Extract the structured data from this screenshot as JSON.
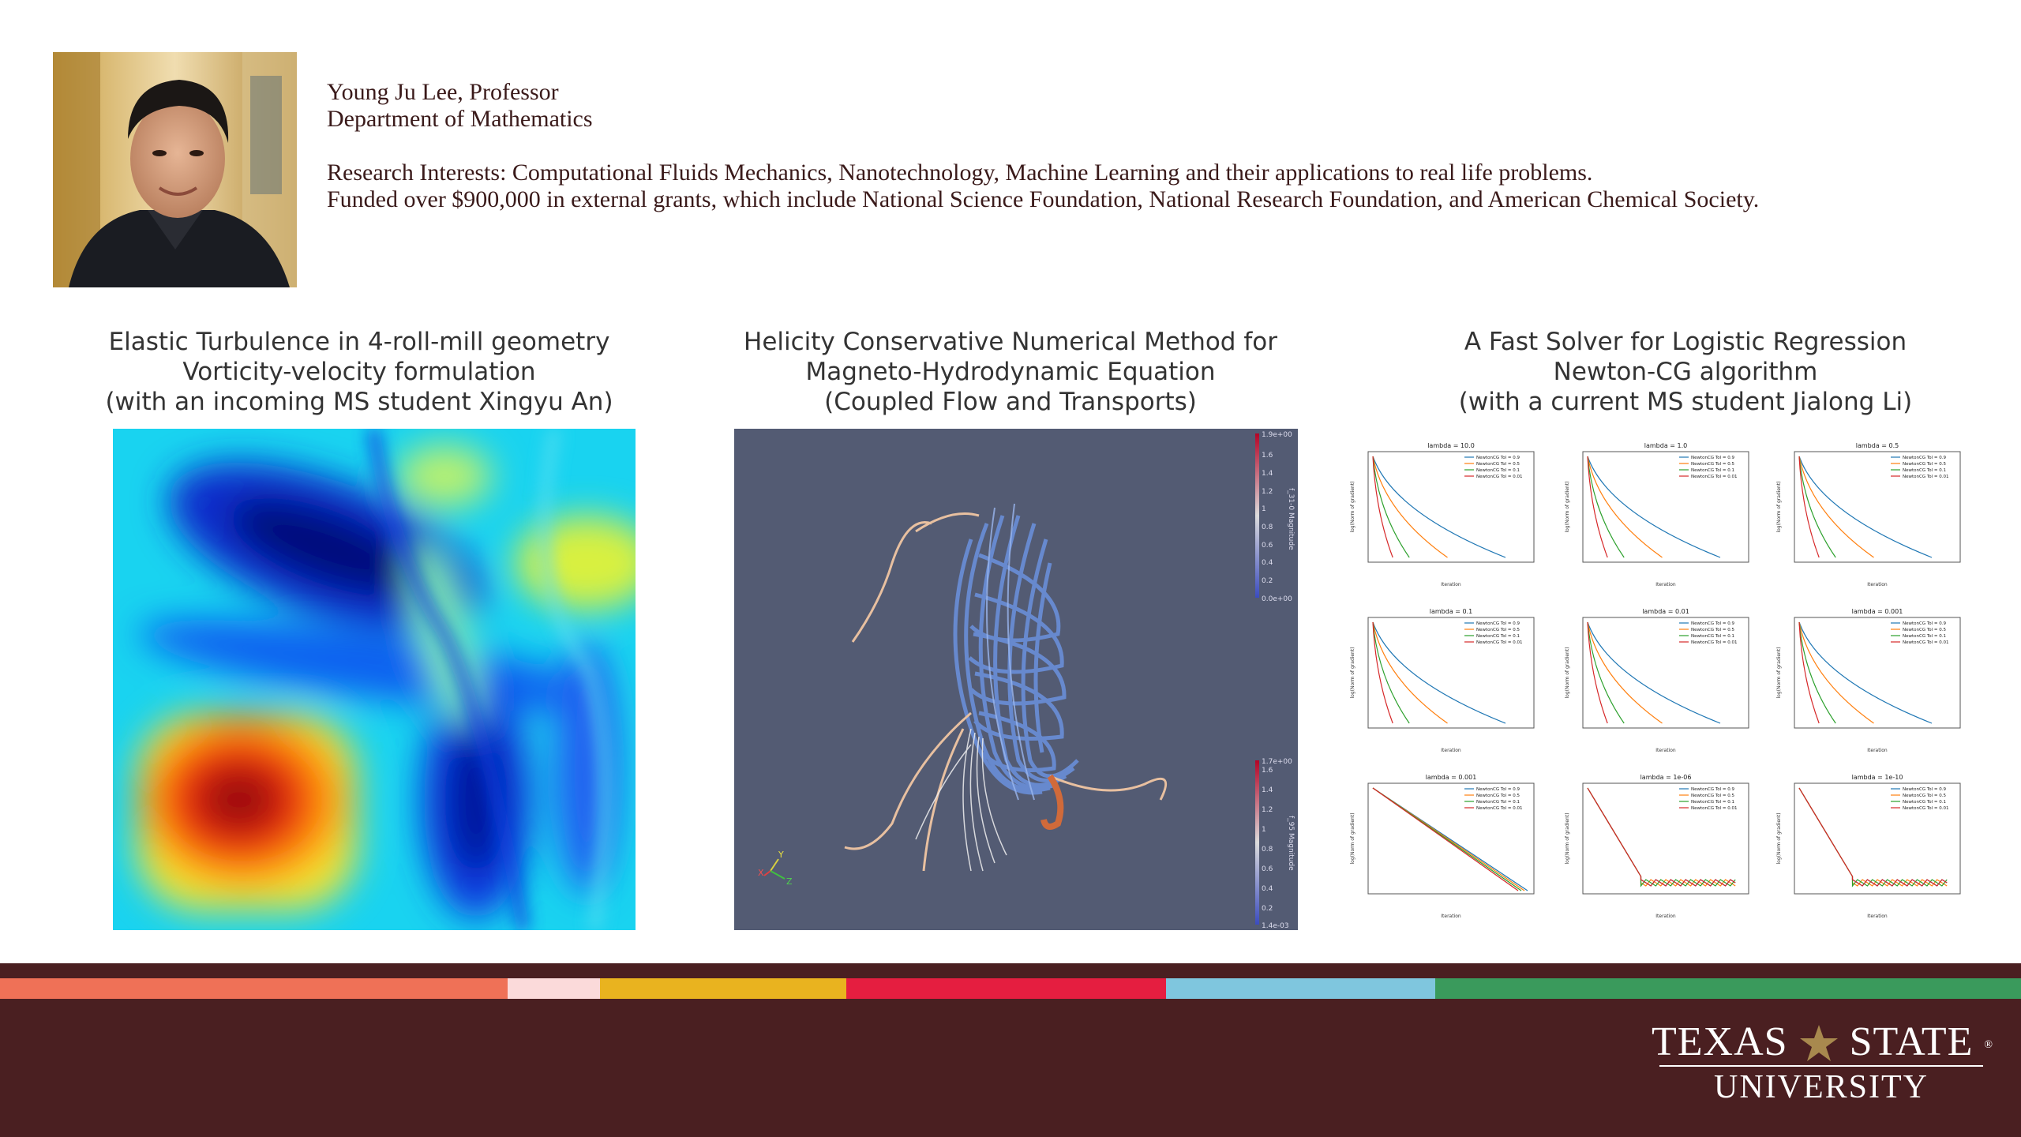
{
  "profile": {
    "name_line": "Young Ju Lee, Professor",
    "department": "Department of Mathematics",
    "research": "Research Interests: Computational Fluids Mechanics, Nanotechnology, Machine Learning and their applications to real life problems.",
    "funding": "Funded over $900,000 in external grants, which include National Science Foundation, National Research Foundation, and American Chemical Society."
  },
  "projects": [
    {
      "line1": "Elastic Turbulence in 4-roll-mill geometry",
      "line2": "Vorticity-velocity formulation",
      "line3": "(with an incoming MS student Xingyu An)"
    },
    {
      "line1": "Helicity Conservative Numerical Method for",
      "line2": "Magneto-Hydrodynamic Equation",
      "line3": "(Coupled Flow and Transports)"
    },
    {
      "line1": "A Fast Solver for Logistic Regression",
      "line2": "Newton-CG algorithm",
      "line3": "(with a current MS student Jialong Li)"
    }
  ],
  "mhd_colorbars": {
    "top_max": "1.9e+00",
    "top_min": "0.0e+00",
    "top_title": "f_31-0 Magnitude",
    "bottom_max": "1.7e+00",
    "bottom_min": "1.4e-03",
    "bottom_title": "f_95 Magnitude",
    "top_ticks": [
      "1.6",
      "1.4",
      "1.2",
      "1",
      "0.8",
      "0.6",
      "0.4",
      "0.2"
    ],
    "bottom_ticks": [
      "1.6",
      "1.4",
      "1.2",
      "1",
      "0.8",
      "0.6",
      "0.4",
      "0.2"
    ],
    "axes": [
      "Y",
      "X",
      "Z"
    ]
  },
  "plots": [
    {
      "title": "lambda = 10.0"
    },
    {
      "title": "lambda = 1.0"
    },
    {
      "title": "lambda = 0.5"
    },
    {
      "title": "lambda = 0.1"
    },
    {
      "title": "lambda = 0.01"
    },
    {
      "title": "lambda = 0.001"
    },
    {
      "title": "lambda = 0.001"
    },
    {
      "title": "lambda = 1e-06"
    },
    {
      "title": "lambda = 1e-10"
    }
  ],
  "plot_legend": [
    "NewtonCG Tol = 0.9",
    "NewtonCG Tol = 0.5",
    "NewtonCG Tol = 0.1",
    "NewtonCG Tol = 0.01"
  ],
  "plot_xlabel": "Iteration",
  "plot_ylabel": "log(Norm of gradient)",
  "stripe_colors": [
    "#ef7157",
    "#fbdada",
    "#e9b31f",
    "#e51e40",
    "#7fc6de",
    "#3a9a5c"
  ],
  "logo": {
    "line1_left": "TEXAS",
    "line1_right": "STATE",
    "line2": "UNIVERSITY",
    "reg": "®"
  }
}
